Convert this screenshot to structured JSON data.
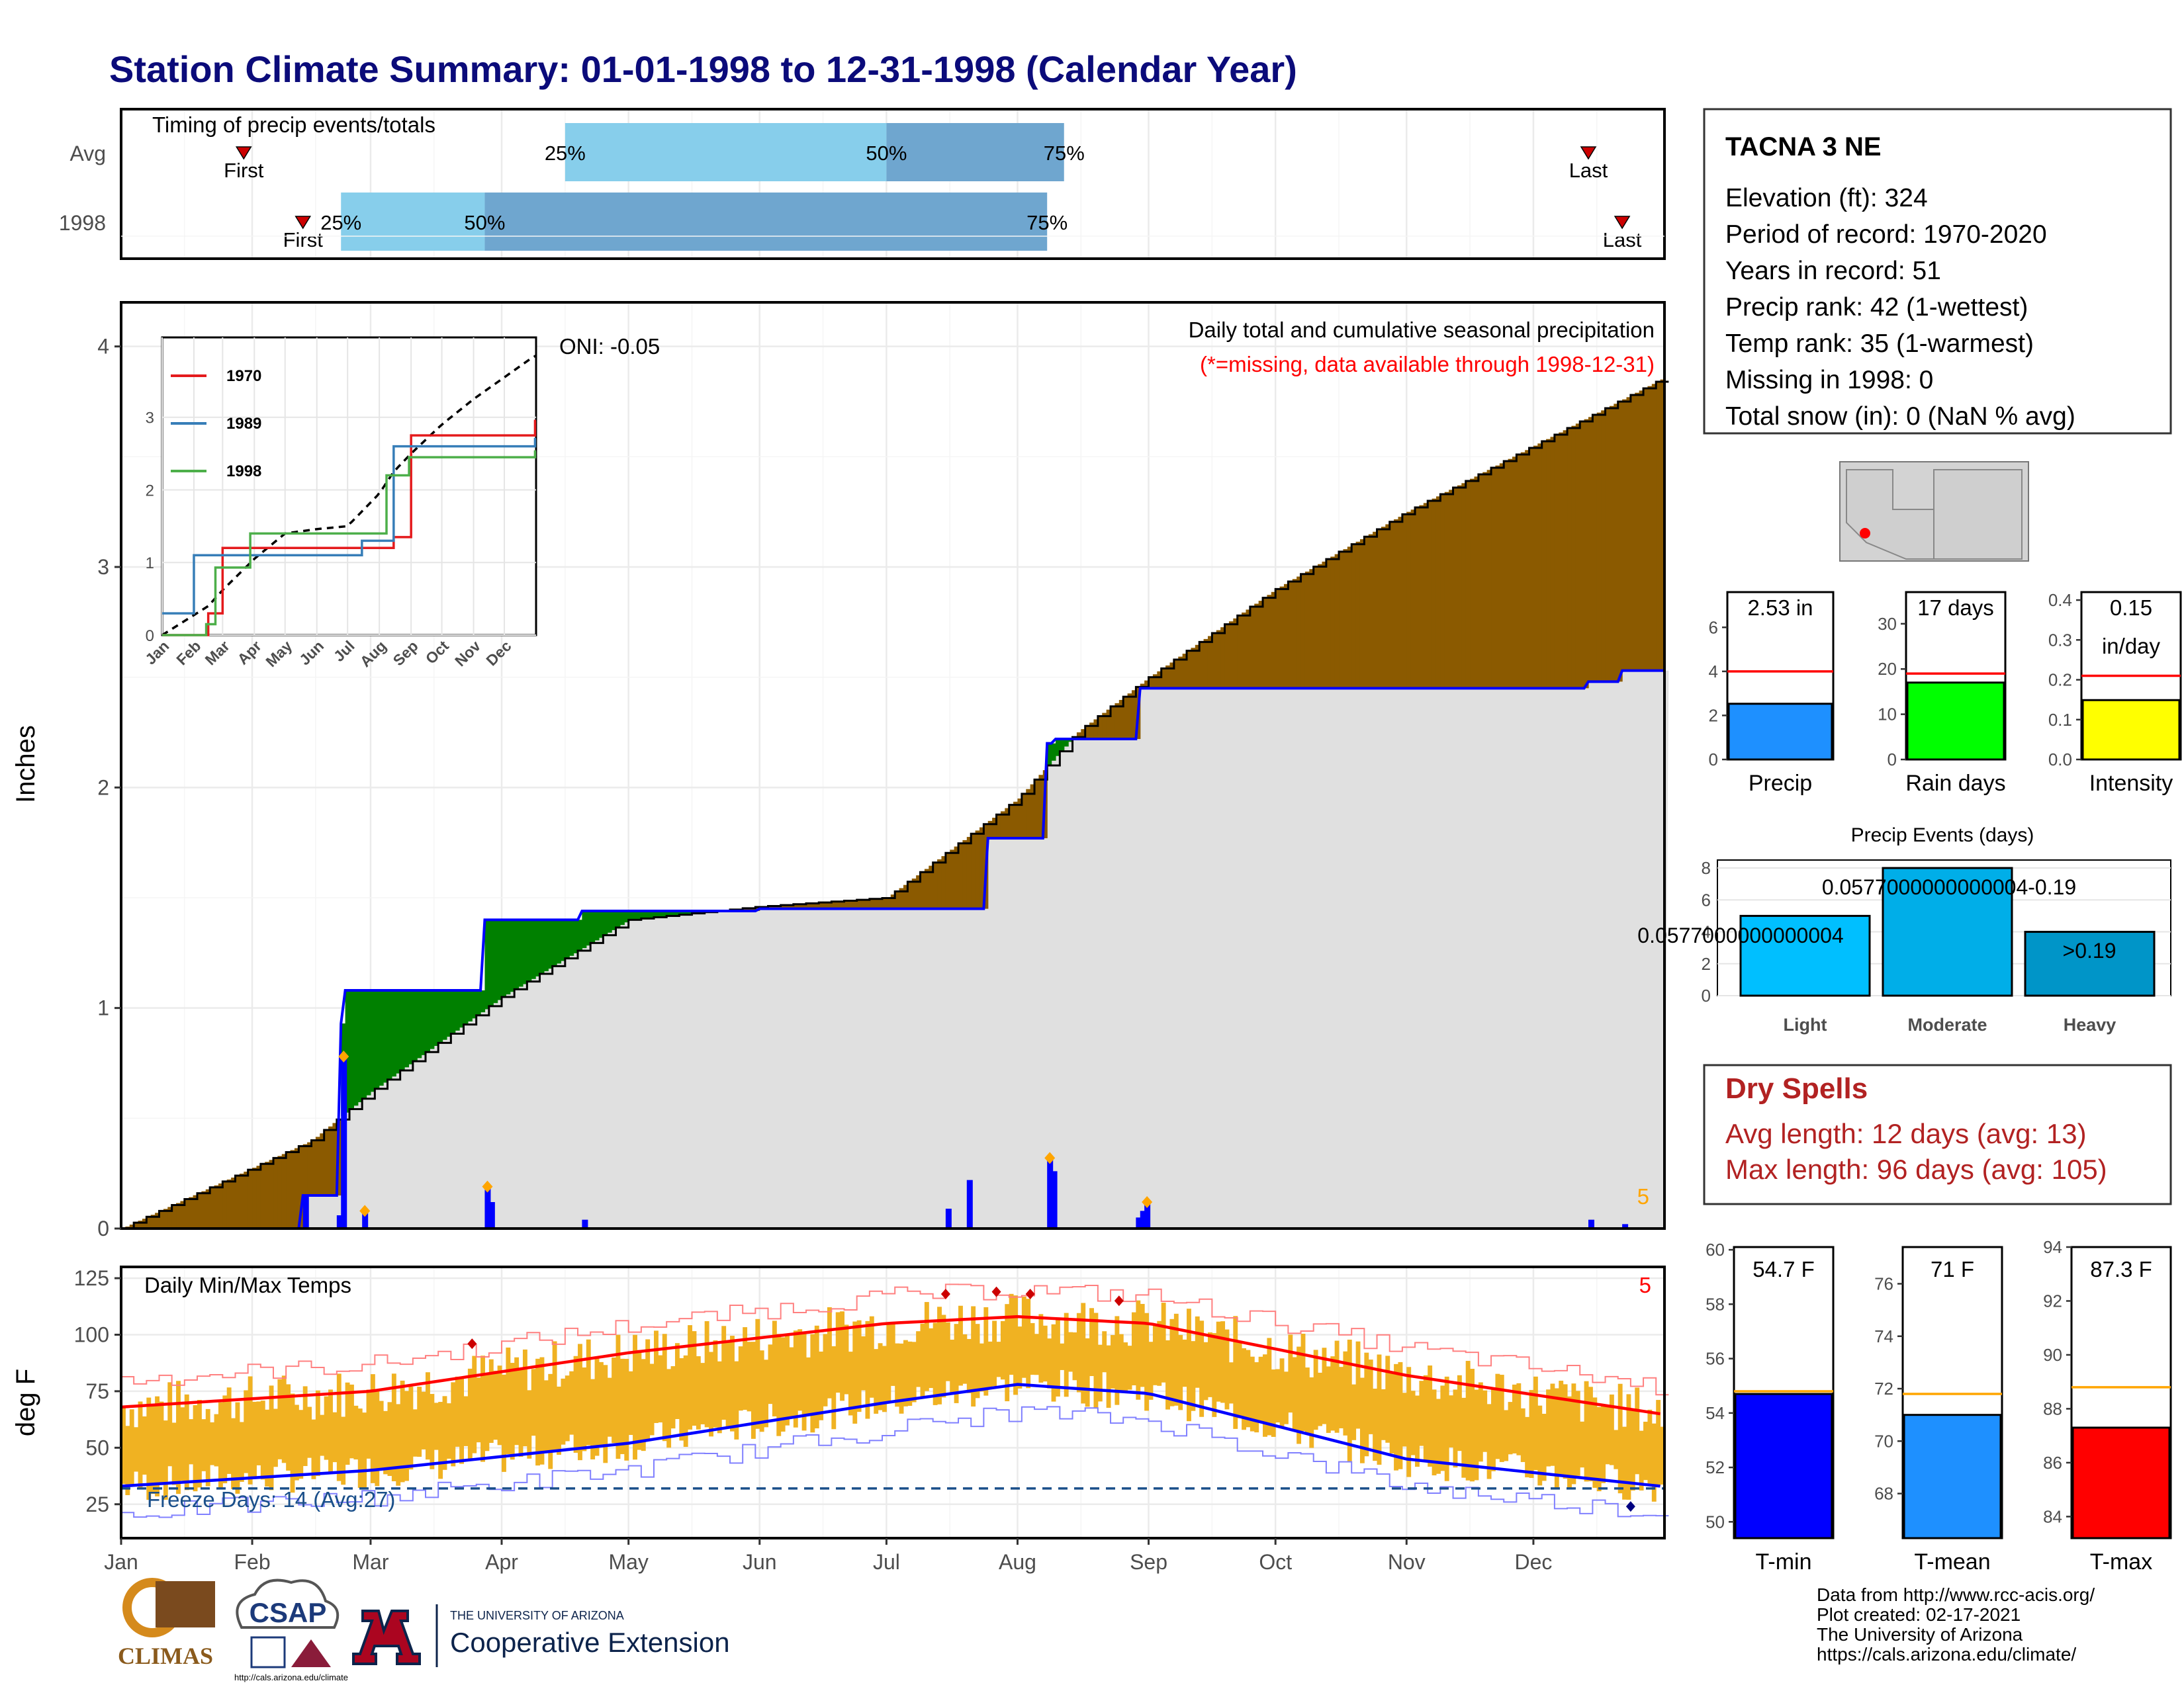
{
  "title": "Station Climate Summary: 01-01-1998 to 12-31-1998 (Calendar Year)",
  "months": [
    "Jan",
    "Feb",
    "Mar",
    "Apr",
    "May",
    "Jun",
    "Jul",
    "Aug",
    "Sep",
    "Oct",
    "Nov",
    "Dec"
  ],
  "colors": {
    "title": "#0b0b7a",
    "precip_above": "#8b5a00",
    "precip_below": "#008000",
    "year_line": "#0000ff",
    "gray_fill": "#e0e0e0",
    "bar_light": "#87ceeb",
    "bar_dark": "#6fa6cf",
    "temp_bar": "#f0b222",
    "max_normal": "#ff0000",
    "min_normal": "#0000ff",
    "dry": "#b22222",
    "marker": "#ffa500"
  },
  "timing": {
    "title": "Timing of precip events/totals",
    "rows": [
      {
        "label": "Avg",
        "first": {
          "date": "Jan 30",
          "label": "First"
        },
        "last": {
          "date": "Dec 14",
          "label": "Last"
        },
        "p25": {
          "date": "Apr 16",
          "label": "25%"
        },
        "p50": {
          "date": "Jul 1",
          "label": "50%"
        },
        "p75": {
          "date": "Aug 12",
          "label": "75%"
        }
      },
      {
        "label": "1998",
        "first": {
          "date": "Feb 13",
          "label": "First"
        },
        "last": {
          "date": "Dec 22",
          "label": "Last"
        },
        "p25": {
          "date": "Feb 22",
          "label": "25%"
        },
        "p50": {
          "date": "Mar 28",
          "label": "50%"
        },
        "p75": {
          "date": "Aug 8",
          "label": "75%"
        }
      }
    ]
  },
  "precip_panel": {
    "ylabel": "Inches",
    "yticks": [
      "0",
      "1",
      "2",
      "3",
      "4"
    ],
    "subtitle": "Daily total and cumulative seasonal precipitation",
    "missing_note": "(*=missing, data available through 1998-12-31)",
    "oni": "ONI: -0.05",
    "corner_count": "5"
  },
  "inset": {
    "yticks": [
      "0",
      "1",
      "2",
      "3"
    ],
    "legend": [
      {
        "name": "1970",
        "color": "#e41a1c"
      },
      {
        "name": "1989",
        "color": "#377eb8"
      },
      {
        "name": "1998",
        "color": "#4daf4a"
      }
    ]
  },
  "temp_panel": {
    "title": "Daily Min/Max Temps",
    "ylabel": "deg F",
    "yticks": [
      "25",
      "50",
      "75",
      "100",
      "125"
    ],
    "freeze": "Freeze Days: 14 (Avg:27)",
    "corner_count": "5"
  },
  "station": {
    "name": "TACNA 3 NE",
    "lines": [
      "Elevation (ft): 324",
      "Period of record: 1970-2020",
      "Years in record: 51",
      "Precip rank: 42 (1-wettest)",
      "Temp rank: 35 (1-warmest)",
      "Missing in 1998: 0",
      "Total snow (in): 0 (NaN % avg)"
    ]
  },
  "mini_bars": [
    {
      "label": "Precip",
      "value_text": "2.53 in",
      "value": 2.53,
      "avg": 4.0,
      "ymax": 7.6,
      "ticks": [
        "0",
        "2",
        "4",
        "6"
      ],
      "tickvals": [
        0,
        2,
        4,
        6
      ],
      "color": "#1e90ff"
    },
    {
      "label": "Rain days",
      "value_text": "17 days",
      "value": 17,
      "avg": 19,
      "ymax": 37,
      "ticks": [
        "0",
        "10",
        "20",
        "30"
      ],
      "tickvals": [
        0,
        10,
        20,
        30
      ],
      "color": "#00ff00"
    },
    {
      "label": "Intensity",
      "value_text": "0.15",
      "value_text2": "in/day",
      "value": 0.149,
      "avg": 0.21,
      "ymax": 0.42,
      "ticks": [
        "0.0",
        "0.1",
        "0.2",
        "0.3",
        "0.4"
      ],
      "tickvals": [
        0,
        0.1,
        0.2,
        0.3,
        0.4
      ],
      "color": "#ffff00"
    }
  ],
  "events": {
    "title": "Precip Events (days)",
    "ticks": [
      "0",
      "2",
      "4",
      "6",
      "8"
    ],
    "bars": [
      {
        "category": "Light",
        "value": 5,
        "label": "0.0577000000000004",
        "color": "#00bfff"
      },
      {
        "category": "Moderate",
        "value": 8,
        "label": "0.0577000000000004-0.19",
        "color": "#00aee8"
      },
      {
        "category": "Heavy",
        "value": 4,
        "label": ">0.19",
        "color": "#0095c8"
      }
    ]
  },
  "dry_spells": {
    "title": "Dry Spells",
    "avg": "Avg length: 12 days (avg: 13)",
    "max": "Max length: 96 days (avg: 105)"
  },
  "temp_bars": [
    {
      "label": "T-min",
      "value_text": "54.7 F",
      "value": 54.7,
      "avg": 54.8,
      "ymin": 49.4,
      "ymax": 60.1,
      "ticks": [
        "50",
        "52",
        "54",
        "56",
        "58",
        "60"
      ],
      "tickvals": [
        50,
        52,
        54,
        56,
        58,
        60
      ],
      "color": "#0000ff"
    },
    {
      "label": "T-mean",
      "value_text": "71 F",
      "value": 71.0,
      "avg": 71.8,
      "ymin": 66.3,
      "ymax": 77.4,
      "ticks": [
        "68",
        "70",
        "72",
        "74",
        "76"
      ],
      "tickvals": [
        68,
        70,
        72,
        74,
        76
      ],
      "color": "#1e90ff"
    },
    {
      "label": "T-max",
      "value_text": "87.3 F",
      "value": 87.3,
      "avg": 88.8,
      "ymin": 83.2,
      "ymax": 94.0,
      "ticks": [
        "84",
        "86",
        "88",
        "90",
        "92",
        "94"
      ],
      "tickvals": [
        84,
        86,
        88,
        90,
        92,
        94
      ],
      "color": "#ff0000"
    }
  ],
  "credits": [
    "Data from http://www.rcc-acis.org/",
    "Plot created: 02-17-2021",
    "The University of Arizona",
    "https://cals.arizona.edu/climate/"
  ],
  "logos": {
    "climas": "CLIMAS",
    "csap": "CSAP",
    "csap_url": "http://cals.arizona.edu/climate",
    "ua_small": "THE UNIVERSITY OF ARIZONA",
    "ua_big": "Cooperative Extension"
  },
  "chart_data": [
    {
      "type": "area",
      "title": "Daily total and cumulative seasonal precipitation",
      "ylabel": "Inches",
      "ylim": [
        0,
        4.2
      ],
      "series": [
        {
          "name": "",
          "x": [
            "01-01",
            "02-15",
            "03-01",
            "04-01",
            "05-01",
            "06-01",
            "07-01",
            "08-01",
            "08-15",
            "09-01",
            "10-01",
            "11-01",
            "12-01",
            "12-31"
          ],
          "values": [
            0.0,
            0.4,
            0.62,
            1.05,
            1.4,
            1.46,
            1.5,
            1.95,
            2.25,
            2.5,
            2.9,
            3.25,
            3.55,
            3.85
          ]
        },
        {
          "name": "",
          "x": [
            "01-01",
            "02-13",
            "02-22",
            "02-23",
            "03-28",
            "04-20",
            "06-01",
            "07-15",
            "07-25",
            "08-08",
            "08-10",
            "08-30",
            "12-14",
            "12-22",
            "12-31"
          ],
          "values": [
            0.0,
            0.15,
            0.93,
            1.08,
            1.4,
            1.44,
            1.45,
            1.45,
            1.77,
            2.2,
            2.22,
            2.45,
            2.48,
            2.53,
            2.53
          ]
        }
      ]
    },
    {
      "type": "line",
      "title": "",
      "ylim": [
        0,
        4.1
      ],
      "series": [
        {
          "name": "1970",
          "x": [
            "01-01",
            "02-15",
            "03-01",
            "08-15",
            "09-01",
            "12-31"
          ],
          "values": [
            0.0,
            0.3,
            1.2,
            1.35,
            2.75,
            2.95
          ]
        },
        {
          "name": "1989",
          "x": [
            "01-01",
            "01-15",
            "02-01",
            "02-20",
            "07-15",
            "08-15",
            "12-31"
          ],
          "values": [
            0.3,
            0.3,
            1.1,
            1.1,
            1.3,
            2.6,
            2.7
          ]
        },
        {
          "name": "1998",
          "x": [
            "01-01",
            "02-13",
            "02-22",
            "03-28",
            "08-08",
            "08-30",
            "12-31"
          ],
          "values": [
            0.0,
            0.15,
            0.93,
            1.4,
            2.2,
            2.45,
            2.53
          ]
        }
      ]
    },
    {
      "type": "bar",
      "title": "Daily Min/Max Temps",
      "ylabel": "deg F",
      "ylim": [
        10,
        130
      ],
      "series": [
        {
          "name": "",
          "x": [
            "01-01",
            "03-01",
            "05-01",
            "07-01",
            "08-01",
            "09-01",
            "11-01",
            "12-31"
          ],
          "values": [
            68,
            75,
            92,
            105,
            108,
            105,
            82,
            65
          ]
        },
        {
          "name": "",
          "x": [
            "01-01",
            "03-01",
            "05-01",
            "07-01",
            "08-01",
            "09-01",
            "11-01",
            "12-31"
          ],
          "values": [
            33,
            40,
            52,
            70,
            78,
            74,
            45,
            33
          ]
        }
      ]
    },
    {
      "type": "bar",
      "title": "",
      "categories": [
        "Precip"
      ],
      "values": [
        2.53
      ],
      "ylim": [
        0,
        7.6
      ]
    },
    {
      "type": "bar",
      "title": "",
      "categories": [
        "Rain days"
      ],
      "values": [
        17
      ],
      "ylim": [
        0,
        37
      ]
    },
    {
      "type": "bar",
      "title": "",
      "categories": [
        "Intensity"
      ],
      "values": [
        0.15
      ],
      "ylim": [
        0,
        0.42
      ]
    },
    {
      "type": "bar",
      "title": "Precip Events (days)",
      "categories": [
        "Light",
        "Moderate",
        "Heavy"
      ],
      "values": [
        5,
        8,
        4
      ],
      "ylim": [
        0,
        8.5
      ]
    },
    {
      "type": "bar",
      "title": "",
      "categories": [
        "T-min",
        "T-mean",
        "T-max"
      ],
      "values": [
        54.7,
        71.0,
        87.3
      ]
    }
  ]
}
